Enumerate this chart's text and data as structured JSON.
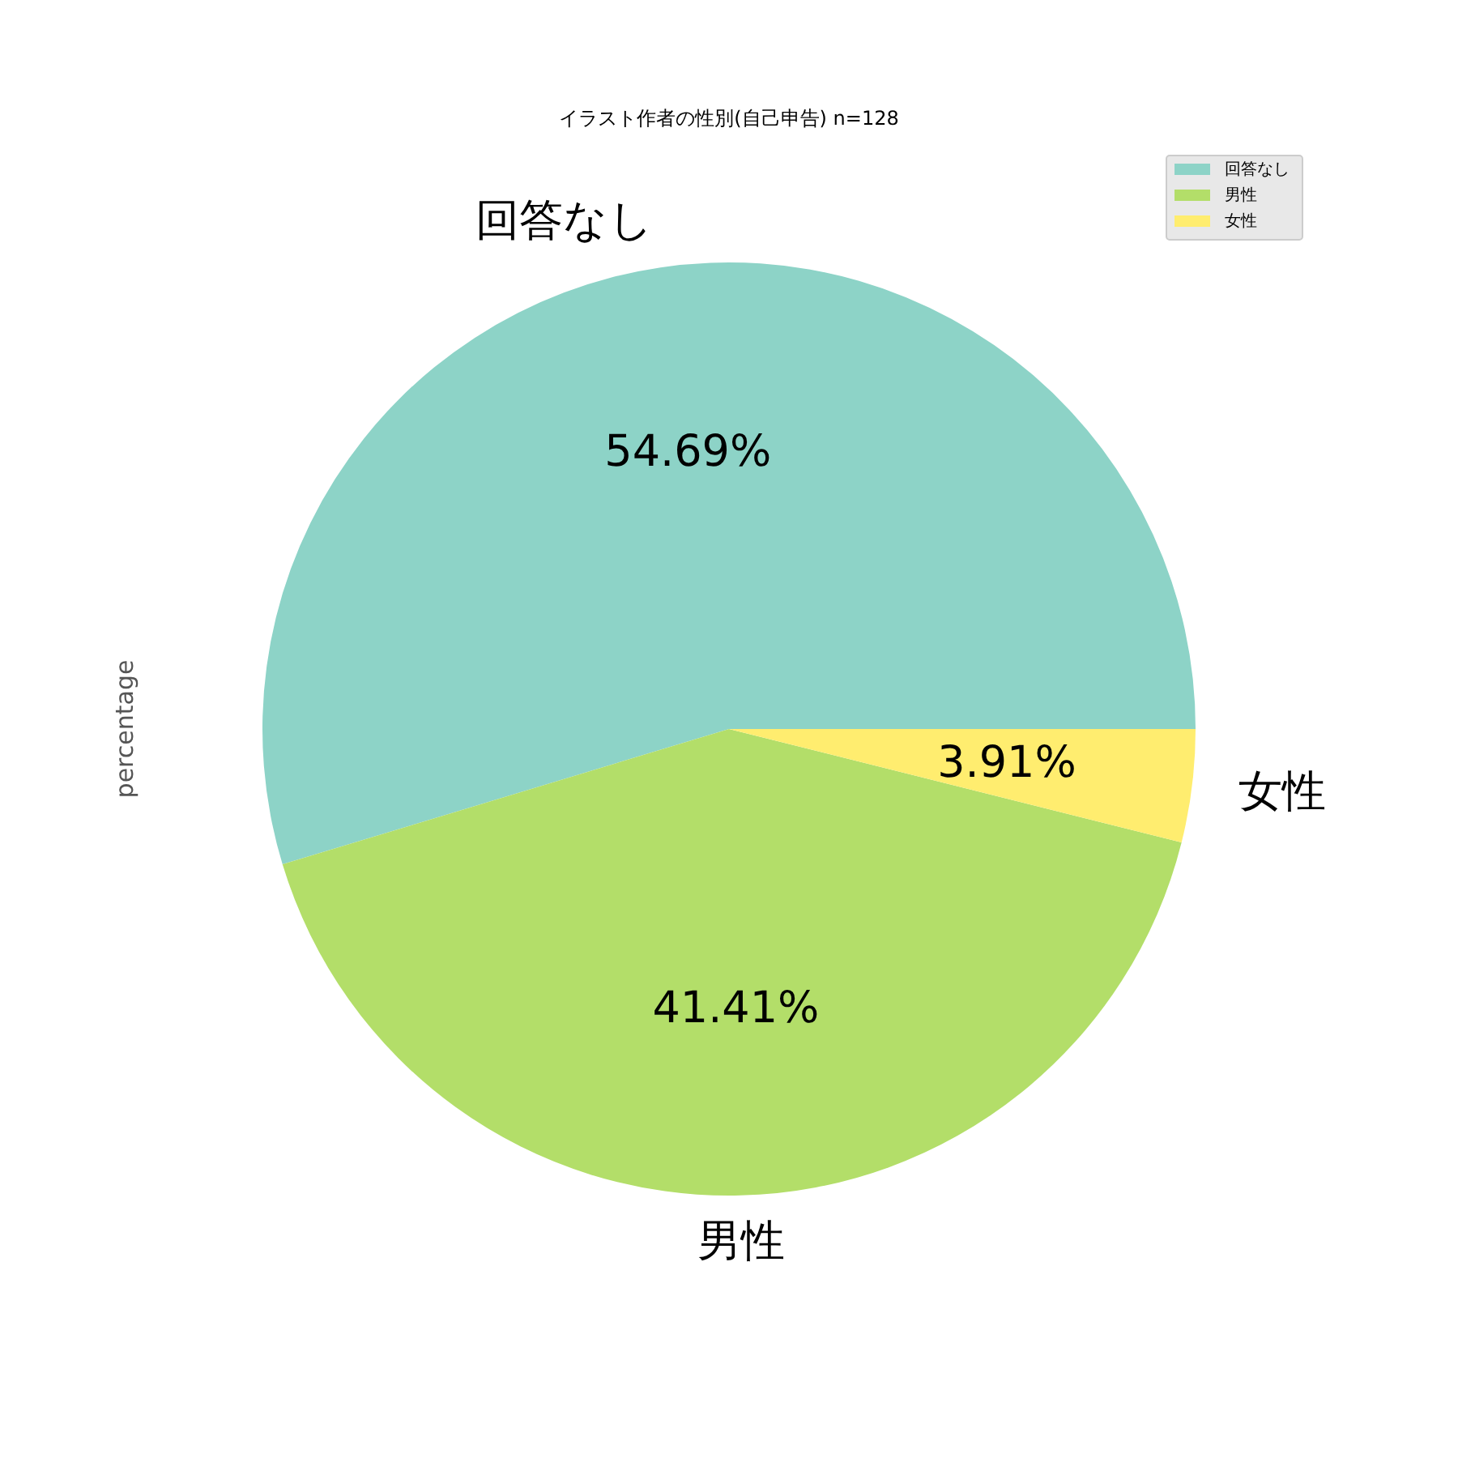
{
  "chart_data": {
    "type": "pie",
    "title": "イラスト作者の性別(自己申告) n=128",
    "ylabel": "percentage",
    "categories": [
      "回答なし",
      "男性",
      "女性"
    ],
    "values": [
      54.69,
      41.41,
      3.91
    ],
    "value_labels": [
      "54.69%",
      "41.41%",
      "3.91%"
    ],
    "colors": [
      "#8dd3c7",
      "#b3de69",
      "#ffed6f"
    ],
    "legend": "top right"
  }
}
